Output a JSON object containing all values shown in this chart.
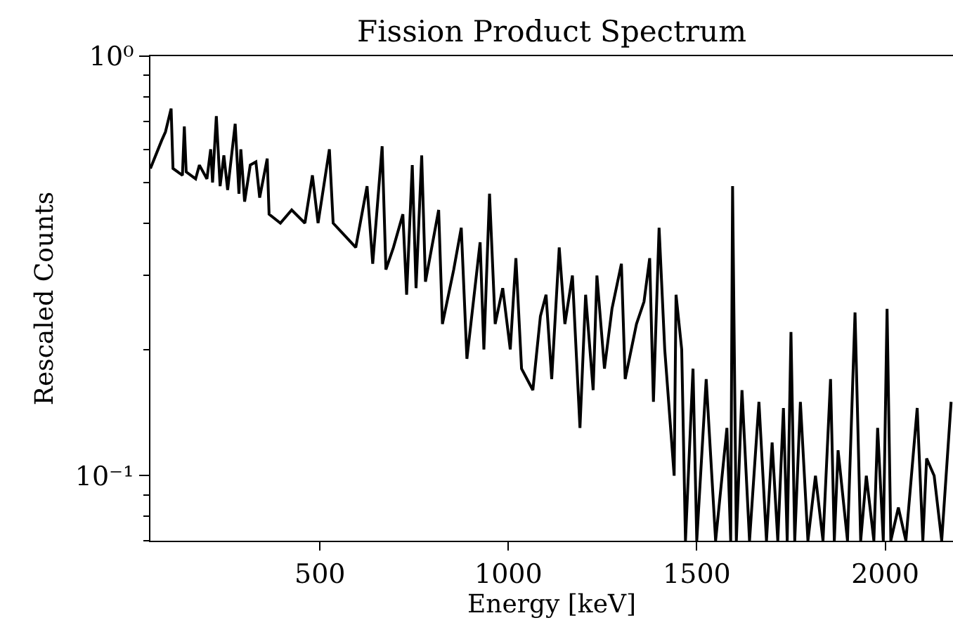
{
  "chart_data": {
    "type": "line",
    "title": "Fission Product Spectrum",
    "xlabel": "Energy [keV]",
    "ylabel": "Rescaled Counts",
    "log": "y",
    "grid": false,
    "legend": false,
    "marker": "none",
    "line_style": "solid",
    "xlim": [
      50,
      2180
    ],
    "xticks": [
      500,
      1000,
      1500,
      2000
    ],
    "ylim": [
      0.07,
      1
    ],
    "yticks": [
      {
        "value": 0.1,
        "label": "10⁻¹"
      },
      {
        "value": 1,
        "label": "10⁰"
      },
      {
        "value": 0.07,
        "label": null
      },
      {
        "value": 0.08,
        "label": null
      },
      {
        "value": 0.09,
        "label": null
      },
      {
        "value": 0.2,
        "label": null
      },
      {
        "value": 0.3,
        "label": null
      },
      {
        "value": 0.4,
        "label": null
      },
      {
        "value": 0.5,
        "label": null
      },
      {
        "value": 0.6,
        "label": null
      },
      {
        "value": 0.7,
        "label": null
      },
      {
        "value": 0.8,
        "label": null
      },
      {
        "value": 0.9,
        "label": null
      }
    ],
    "series": [
      {
        "color": "#000000",
        "x": [
          50,
          80,
          90,
          105,
          110,
          135,
          140,
          145,
          170,
          180,
          200,
          210,
          215,
          225,
          235,
          245,
          255,
          275,
          285,
          290,
          300,
          315,
          330,
          340,
          360,
          365,
          395,
          425,
          460,
          480,
          495,
          525,
          535,
          570,
          595,
          625,
          640,
          665,
          675,
          695,
          720,
          730,
          745,
          755,
          770,
          780,
          815,
          825,
          855,
          875,
          890,
          925,
          935,
          950,
          965,
          985,
          1005,
          1020,
          1035,
          1065,
          1085,
          1100,
          1115,
          1135,
          1150,
          1170,
          1190,
          1205,
          1225,
          1235,
          1255,
          1275,
          1300,
          1310,
          1340,
          1360,
          1375,
          1385,
          1400,
          1415,
          1440,
          1445,
          1460,
          1470,
          1490,
          1500,
          1525,
          1550,
          1580,
          1590,
          1595,
          1605,
          1620,
          1640,
          1665,
          1685,
          1700,
          1715,
          1730,
          1740,
          1750,
          1760,
          1775,
          1795,
          1815,
          1835,
          1855,
          1865,
          1875,
          1900,
          1920,
          1935,
          1950,
          1970,
          1980,
          1995,
          2005,
          2015,
          2035,
          2055,
          2085,
          2100,
          2110,
          2130,
          2150,
          2175
        ],
        "values": [
          0.54,
          0.63,
          0.66,
          0.75,
          0.54,
          0.52,
          0.68,
          0.53,
          0.51,
          0.55,
          0.51,
          0.6,
          0.5,
          0.72,
          0.49,
          0.58,
          0.48,
          0.69,
          0.47,
          0.6,
          0.45,
          0.55,
          0.56,
          0.46,
          0.57,
          0.42,
          0.4,
          0.43,
          0.4,
          0.52,
          0.4,
          0.6,
          0.4,
          0.37,
          0.35,
          0.49,
          0.32,
          0.61,
          0.31,
          0.35,
          0.42,
          0.27,
          0.55,
          0.28,
          0.58,
          0.29,
          0.43,
          0.23,
          0.31,
          0.39,
          0.19,
          0.36,
          0.2,
          0.47,
          0.23,
          0.28,
          0.2,
          0.33,
          0.18,
          0.16,
          0.24,
          0.27,
          0.17,
          0.35,
          0.23,
          0.3,
          0.13,
          0.27,
          0.16,
          0.3,
          0.18,
          0.25,
          0.32,
          0.17,
          0.23,
          0.26,
          0.33,
          0.15,
          0.39,
          0.2,
          0.1,
          0.27,
          0.2,
          0.07,
          0.18,
          0.07,
          0.17,
          0.07,
          0.13,
          0.07,
          0.49,
          0.07,
          0.16,
          0.07,
          0.15,
          0.07,
          0.12,
          0.07,
          0.145,
          0.07,
          0.22,
          0.07,
          0.15,
          0.07,
          0.1,
          0.07,
          0.17,
          0.07,
          0.115,
          0.07,
          0.245,
          0.07,
          0.1,
          0.07,
          0.13,
          0.07,
          0.25,
          0.07,
          0.084,
          0.07,
          0.145,
          0.07,
          0.11,
          0.1,
          0.07,
          0.15
        ]
      }
    ]
  }
}
